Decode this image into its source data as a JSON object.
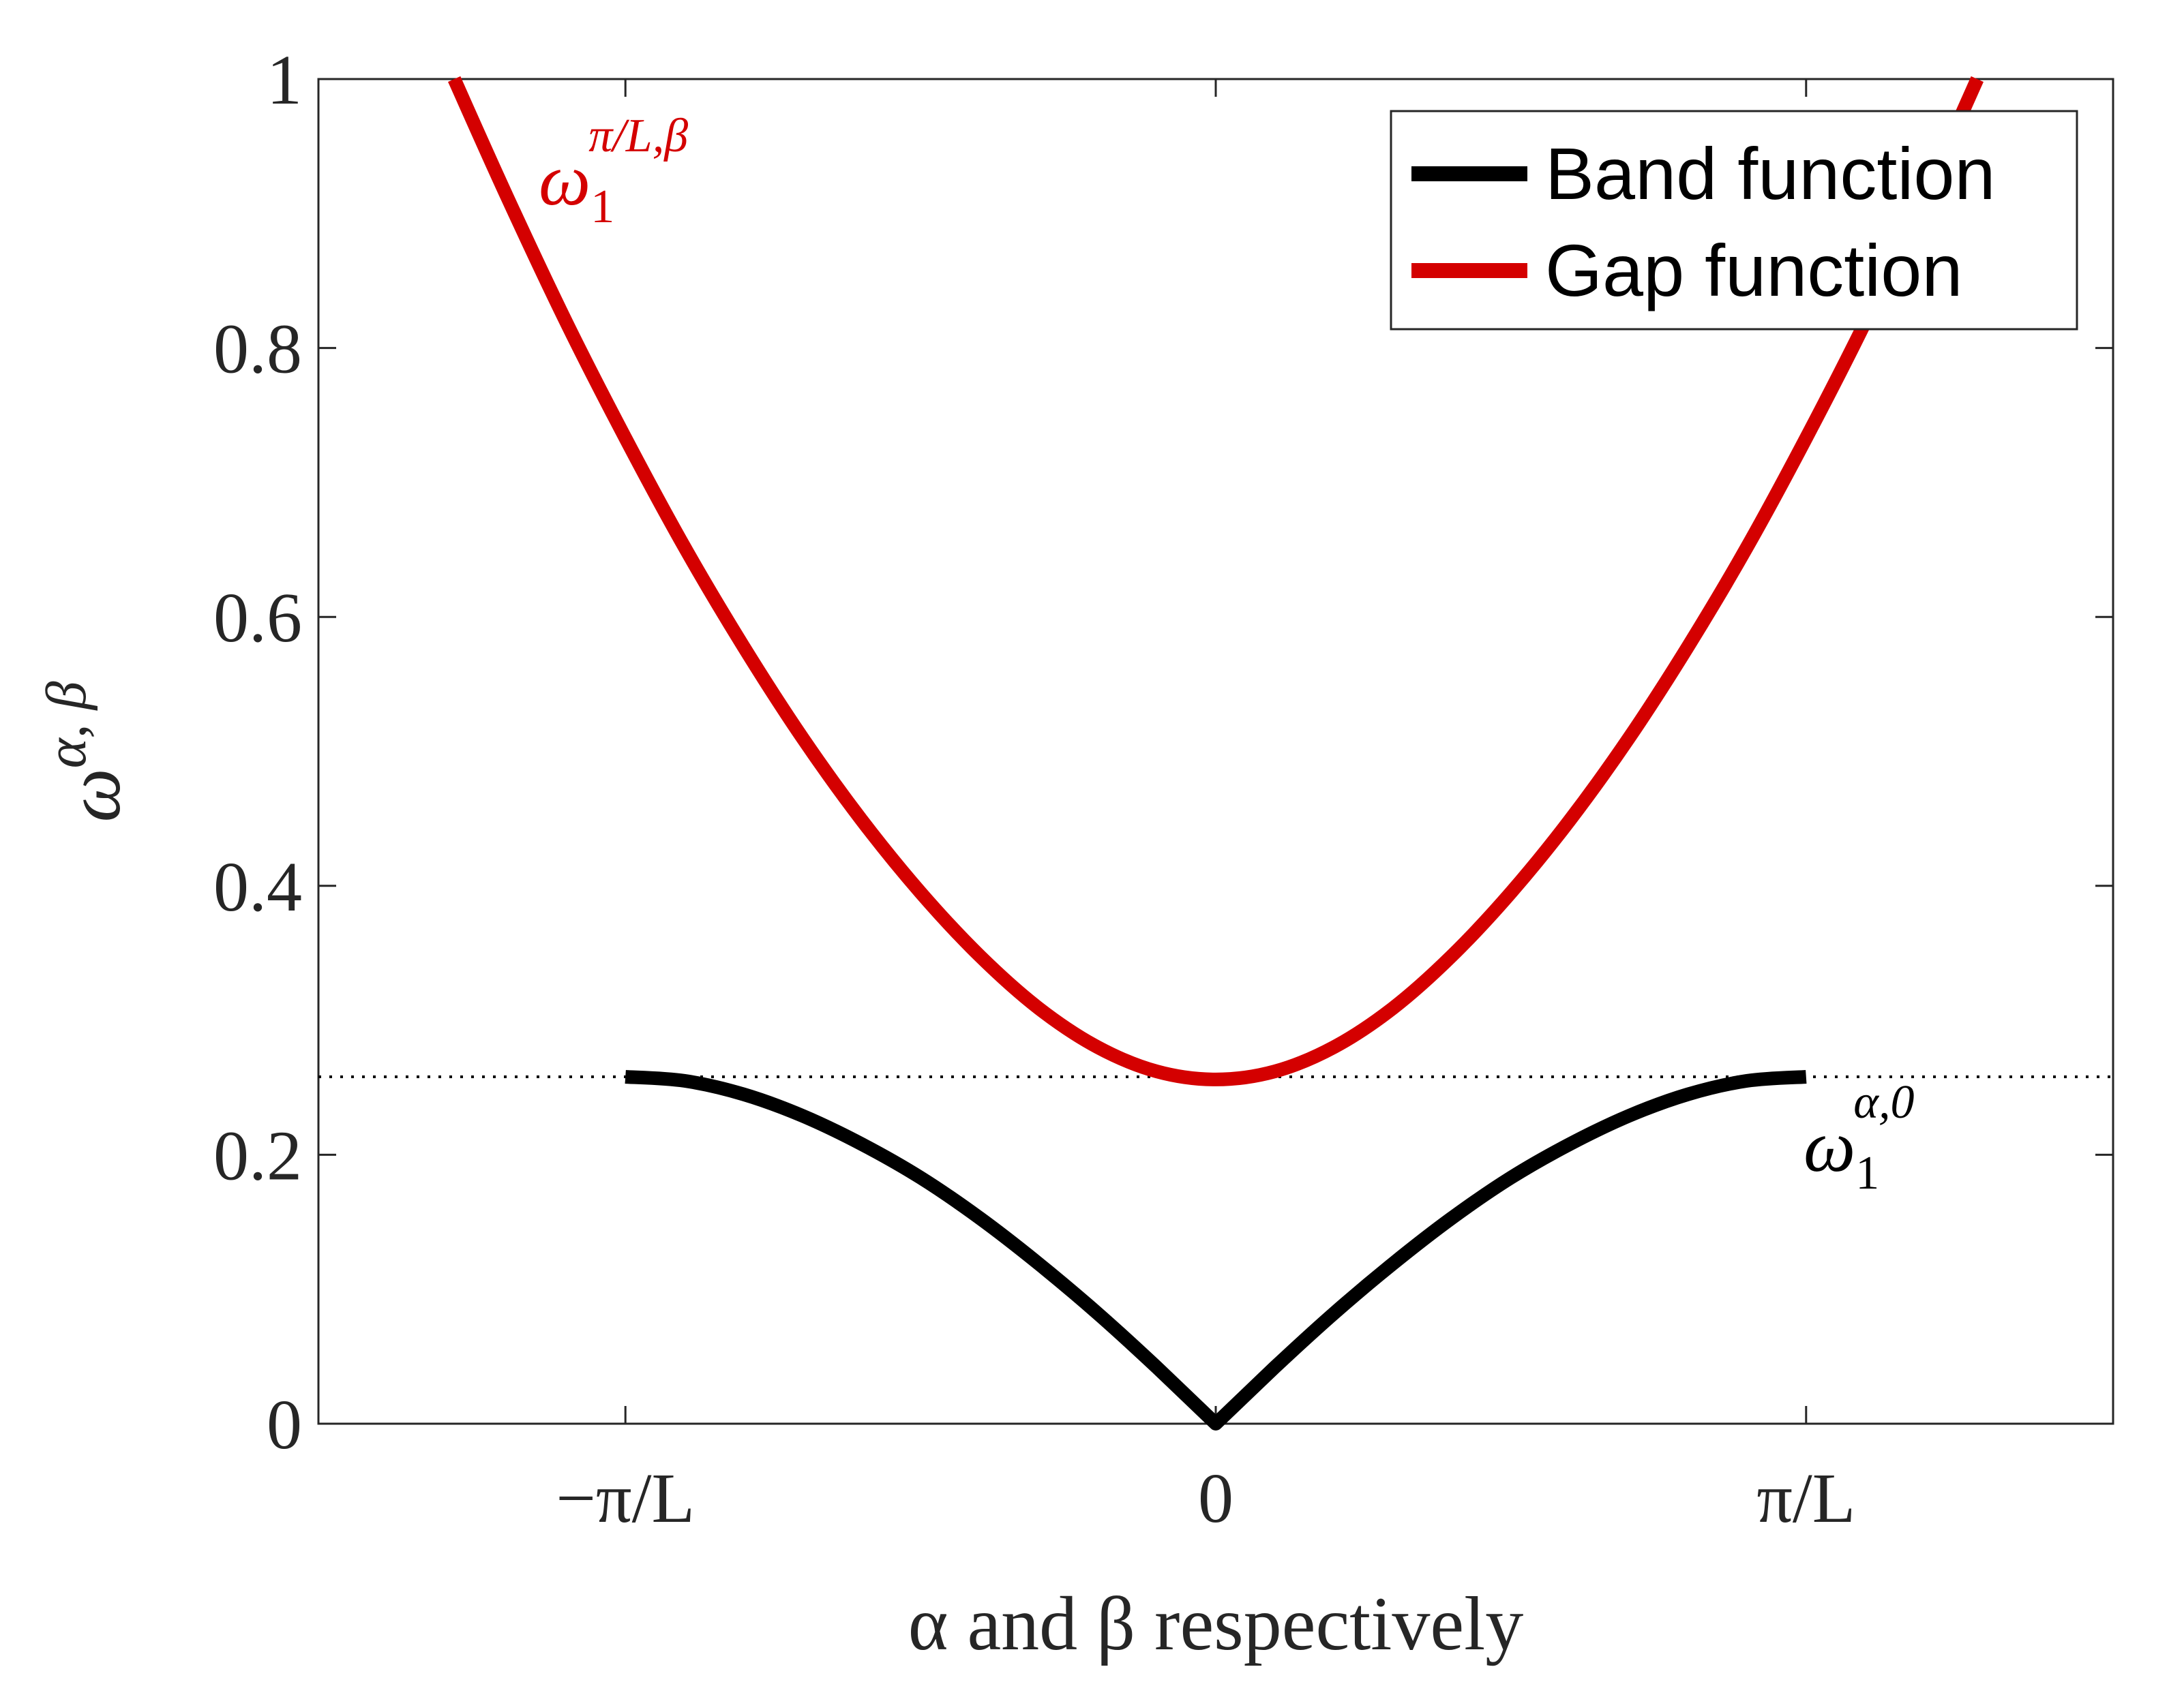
{
  "chart_data": {
    "type": "line",
    "title": "",
    "xlabel": "α and β respectively",
    "ylabel_parts": {
      "base": "ω",
      "sup": "α, β"
    },
    "xlim": [
      -1.52,
      1.52
    ],
    "ylim": [
      0,
      1
    ],
    "x_unit": "π/L",
    "x_ticks": [
      -1,
      0,
      1
    ],
    "x_tick_labels": [
      "−π/L",
      "0",
      "π/L"
    ],
    "y_ticks": [
      0,
      0.2,
      0.4,
      0.6,
      0.8,
      1
    ],
    "y_tick_labels": [
      "0",
      "0.2",
      "0.4",
      "0.6",
      "0.8",
      "1"
    ],
    "grid": false,
    "legend_position": "top-right",
    "reference_line": {
      "y": 0.258,
      "style": "dotted",
      "color": "#000000"
    },
    "series": [
      {
        "name": "Band function",
        "color": "#000000",
        "x": [
          -1.0,
          -0.9,
          -0.8,
          -0.7,
          -0.6,
          -0.5,
          -0.4,
          -0.3,
          -0.2,
          -0.1,
          0.0,
          0.1,
          0.2,
          0.3,
          0.4,
          0.5,
          0.6,
          0.7,
          0.8,
          0.9,
          1.0
        ],
        "y": [
          0.258,
          0.255,
          0.245,
          0.229,
          0.208,
          0.183,
          0.153,
          0.119,
          0.082,
          0.042,
          0.0,
          0.042,
          0.082,
          0.119,
          0.153,
          0.183,
          0.208,
          0.229,
          0.245,
          0.255,
          0.258
        ]
      },
      {
        "name": "Gap function",
        "color": "#d40000",
        "x": [
          -1.29,
          -1.2,
          -1.1,
          -1.0,
          -0.9,
          -0.8,
          -0.7,
          -0.6,
          -0.5,
          -0.4,
          -0.3,
          -0.2,
          -0.1,
          0.0,
          0.1,
          0.2,
          0.3,
          0.4,
          0.5,
          0.6,
          0.7,
          0.8,
          0.9,
          1.0,
          1.1,
          1.2,
          1.29
        ],
        "y": [
          1.0,
          0.912,
          0.819,
          0.733,
          0.652,
          0.578,
          0.51,
          0.449,
          0.395,
          0.348,
          0.309,
          0.28,
          0.262,
          0.256,
          0.262,
          0.28,
          0.309,
          0.348,
          0.395,
          0.449,
          0.51,
          0.578,
          0.652,
          0.733,
          0.819,
          0.912,
          1.0
        ]
      }
    ],
    "legend": [
      "Band function",
      "Gap function"
    ],
    "annotations": [
      {
        "base": "ω",
        "sub": "1",
        "sup": "π/L,β",
        "color": "#d40000"
      },
      {
        "base": "ω",
        "sub": "1",
        "sup": "α,0",
        "color": "#000000"
      }
    ]
  }
}
